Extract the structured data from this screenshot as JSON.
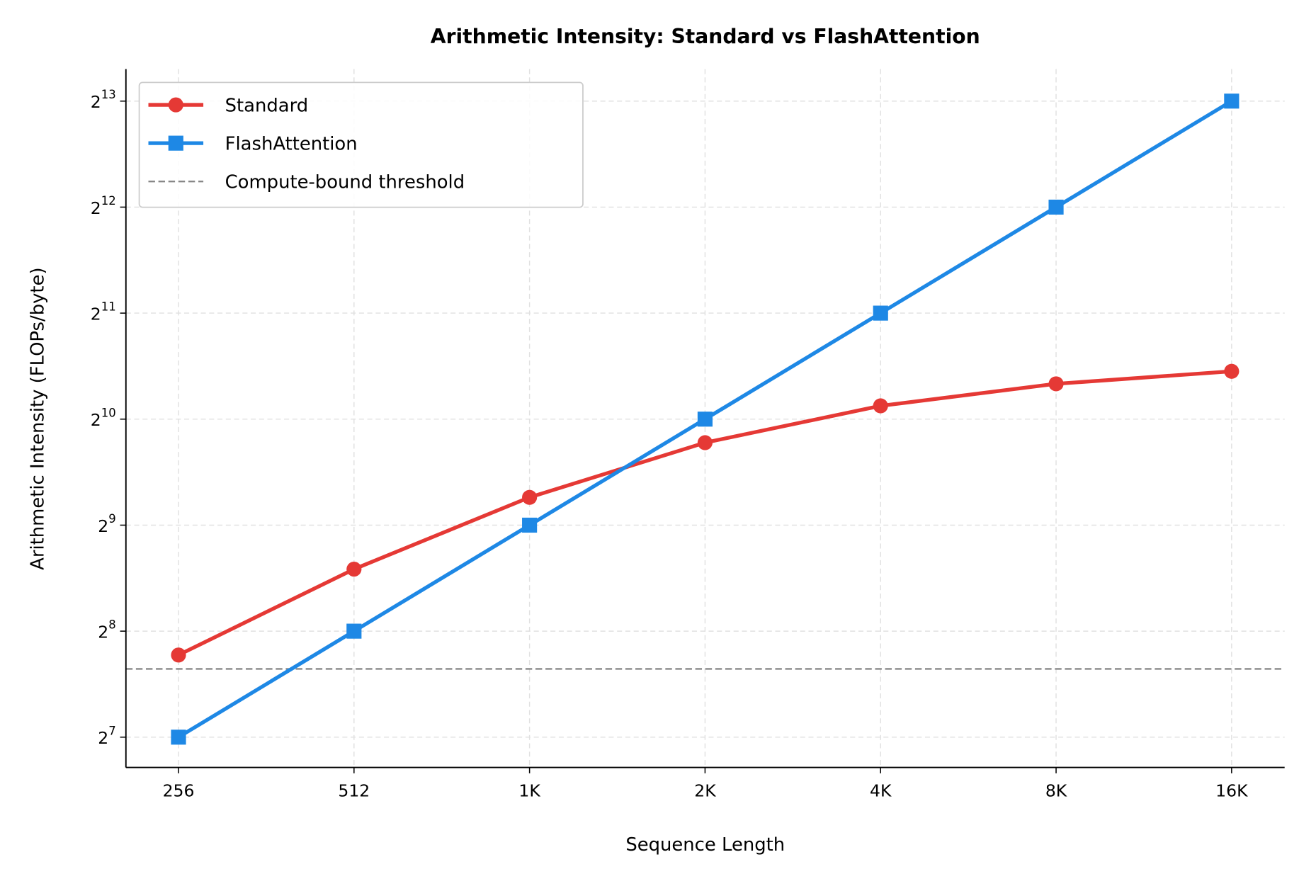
{
  "chart_data": {
    "type": "line",
    "title": "Arithmetic Intensity: Standard vs FlashAttention",
    "xlabel": "Sequence Length",
    "ylabel": "Arithmetic Intensity (FLOPs/byte)",
    "x": [
      256,
      512,
      1024,
      2048,
      4096,
      8192,
      16384
    ],
    "x_tick_labels": [
      "256",
      "512",
      "1K",
      "2K",
      "4K",
      "8K",
      "16K"
    ],
    "x_scale": "log2",
    "y_scale": "log2",
    "y_ticks": [
      {
        "base": "2",
        "exp": "7",
        "value": 128
      },
      {
        "base": "2",
        "exp": "8",
        "value": 256
      },
      {
        "base": "2",
        "exp": "9",
        "value": 512
      },
      {
        "base": "2",
        "exp": "10",
        "value": 1024
      },
      {
        "base": "2",
        "exp": "11",
        "value": 2048
      },
      {
        "base": "2",
        "exp": "12",
        "value": 4096
      },
      {
        "base": "2",
        "exp": "13",
        "value": 8192
      }
    ],
    "xlim": [
      208,
      20200
    ],
    "ylim": [
      105,
      10100
    ],
    "grid": true,
    "legend_placement": "top-left",
    "series": [
      {
        "name": "Standard",
        "color": "#e53935",
        "marker": "circle",
        "values": [
          219,
          384,
          614,
          878,
          1117,
          1290,
          1400
        ]
      },
      {
        "name": "FlashAttention",
        "color": "#1e88e5",
        "marker": "square",
        "values": [
          128,
          256,
          512,
          1024,
          2048,
          4096,
          8192
        ]
      }
    ],
    "reference_lines": [
      {
        "name": "Compute-bound threshold",
        "y": 200,
        "color": "#888888",
        "style": "dashed"
      }
    ]
  }
}
